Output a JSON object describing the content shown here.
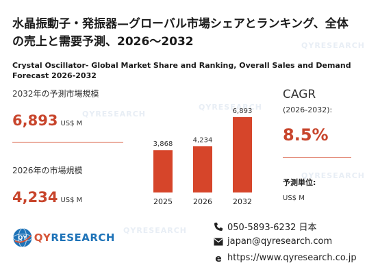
{
  "header": {
    "title_jp": "水晶振動子・発振器—グローバル市場シェアとランキング、全体の売上と需要予測、2026～2032",
    "title_en": "Crystal Oscillator- Global Market Share and Ranking, Overall Sales and Demand Forecast 2026-2032"
  },
  "stats": {
    "forecast_label": "2032年の予測市場規模",
    "forecast_value": "6,893",
    "forecast_unit": "US$ M",
    "current_label": "2026年の市場規模",
    "current_value": "4,234",
    "current_unit": "US$ M"
  },
  "cagr": {
    "title": "CAGR",
    "period": "(2026-2032):",
    "value": "8.5%",
    "unit_label": "予測単位:",
    "unit_value": "US$ M"
  },
  "chart_data": {
    "type": "bar",
    "categories": [
      "2025",
      "2026",
      "2032"
    ],
    "values": [
      3868,
      4234,
      6893
    ],
    "value_labels": [
      "3,868",
      "4,234",
      "6,893"
    ],
    "title": "",
    "xlabel": "",
    "ylabel": "",
    "ylim": [
      0,
      7200
    ],
    "bar_color": "#d6452a",
    "grid": false
  },
  "contact": {
    "phone": "050-5893-6232 日本",
    "email": "japan@qyresearch.com",
    "website": "https://www.qyresearch.co.jp"
  },
  "logo": {
    "text_a": "QY",
    "text_b": "RESEARCH"
  },
  "colors": {
    "accent": "#c8452c",
    "brand_blue": "#1e73b8"
  }
}
